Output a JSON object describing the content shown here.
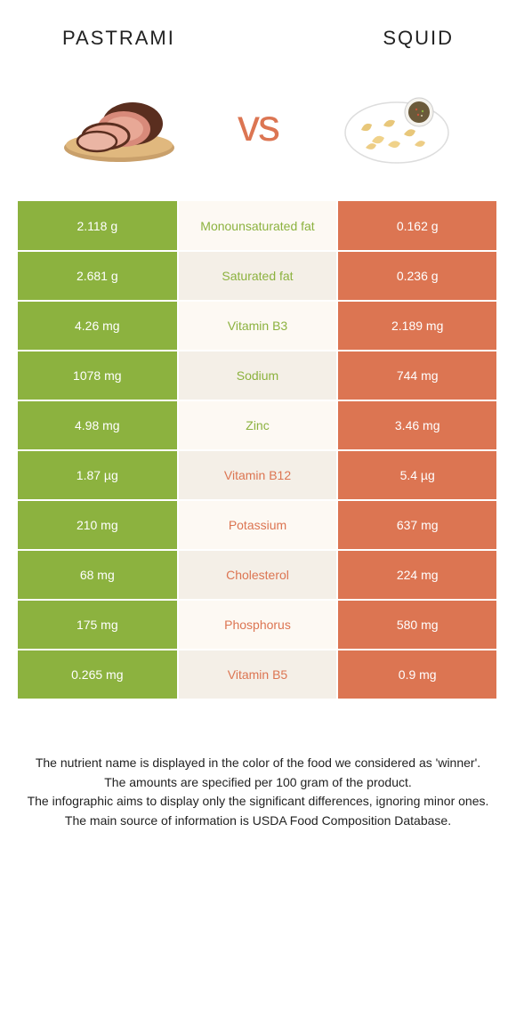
{
  "header": {
    "left_title": "Pastrami",
    "right_title": "Squid",
    "vs_label": "vs"
  },
  "colors": {
    "left": "#8cb23f",
    "right": "#dc7552",
    "mid_bg_a": "#fdf9f3",
    "mid_bg_b": "#f4efe7",
    "mid_text_left": "#8cb23f",
    "mid_text_right": "#dc7552"
  },
  "rows": [
    {
      "left": "2.118 g",
      "label": "Monounsaturated fat",
      "right": "0.162 g",
      "winner": "left"
    },
    {
      "left": "2.681 g",
      "label": "Saturated fat",
      "right": "0.236 g",
      "winner": "left"
    },
    {
      "left": "4.26 mg",
      "label": "Vitamin B3",
      "right": "2.189 mg",
      "winner": "left"
    },
    {
      "left": "1078 mg",
      "label": "Sodium",
      "right": "744 mg",
      "winner": "left"
    },
    {
      "left": "4.98 mg",
      "label": "Zinc",
      "right": "3.46 mg",
      "winner": "left"
    },
    {
      "left": "1.87 µg",
      "label": "Vitamin B12",
      "right": "5.4 µg",
      "winner": "right"
    },
    {
      "left": "210 mg",
      "label": "Potassium",
      "right": "637 mg",
      "winner": "right"
    },
    {
      "left": "68 mg",
      "label": "Cholesterol",
      "right": "224 mg",
      "winner": "right"
    },
    {
      "left": "175 mg",
      "label": "Phosphorus",
      "right": "580 mg",
      "winner": "right"
    },
    {
      "left": "0.265 mg",
      "label": "Vitamin B5",
      "right": "0.9 mg",
      "winner": "right"
    }
  ],
  "footer": {
    "line1": "The nutrient name is displayed in the color of the food we considered as 'winner'.",
    "line2": "The amounts are specified per 100 gram of the product.",
    "line3": "The infographic aims to display only the significant differences, ignoring minor ones.",
    "line4": "The main source of information is USDA Food Composition Database."
  }
}
